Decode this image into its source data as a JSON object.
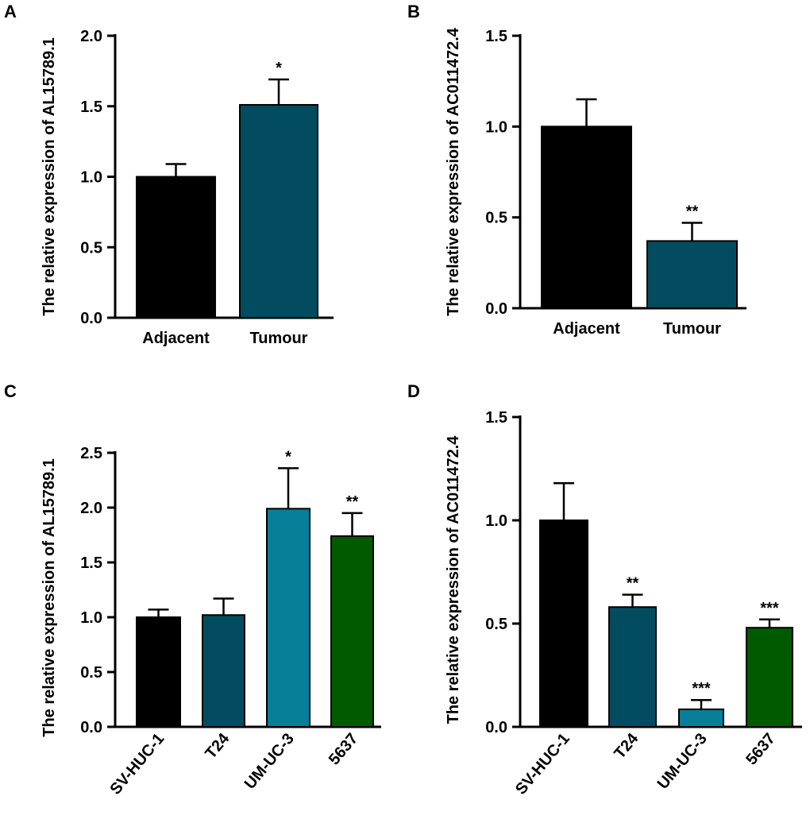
{
  "chart_data": [
    {
      "type": "bar",
      "panel_label": "A",
      "ylabel": "The relative expression of AL15789.1",
      "ylim": [
        0,
        2.0
      ],
      "yticks": [
        "0.0",
        "0.5",
        "1.0",
        "1.5",
        "2.0"
      ],
      "categories": [
        "Adjacent",
        "Tumour"
      ],
      "values": [
        1.0,
        1.51
      ],
      "error_upper": [
        1.09,
        1.69
      ],
      "significance": [
        "",
        "*"
      ],
      "colors": [
        "#000000",
        "#034c60"
      ],
      "rotated_labels": false
    },
    {
      "type": "bar",
      "panel_label": "B",
      "ylabel": "The relative expression of AC011472.4",
      "ylim": [
        0,
        1.5
      ],
      "yticks": [
        "0.0",
        "0.5",
        "1.0",
        "1.5"
      ],
      "categories": [
        "Adjacent",
        "Tumour"
      ],
      "values": [
        1.0,
        0.37
      ],
      "error_upper": [
        1.15,
        0.47
      ],
      "significance": [
        "",
        "**"
      ],
      "colors": [
        "#000000",
        "#034c60"
      ],
      "rotated_labels": false
    },
    {
      "type": "bar",
      "panel_label": "C",
      "ylabel": "The relative expression of AL15789.1",
      "ylim": [
        0,
        2.5
      ],
      "yticks": [
        "0.0",
        "0.5",
        "1.0",
        "1.5",
        "2.0",
        "2.5"
      ],
      "categories": [
        "SV-HUC-1",
        "T24",
        "UM-UC-3",
        "5637"
      ],
      "values": [
        1.0,
        1.02,
        1.99,
        1.74
      ],
      "error_upper": [
        1.07,
        1.17,
        2.36,
        1.95
      ],
      "significance": [
        "",
        "",
        "*",
        "**"
      ],
      "colors": [
        "#000000",
        "#034c60",
        "#077f99",
        "#005a00"
      ],
      "rotated_labels": true
    },
    {
      "type": "bar",
      "panel_label": "D",
      "ylabel": "The relative expression of AC011472.4",
      "ylim": [
        0,
        1.5
      ],
      "yticks": [
        "0.0",
        "0.5",
        "1.0",
        "1.5"
      ],
      "categories": [
        "SV-HUC-1",
        "T24",
        "UM-UC-3",
        "5637"
      ],
      "values": [
        1.0,
        0.58,
        0.085,
        0.48
      ],
      "error_upper": [
        1.18,
        0.64,
        0.13,
        0.52
      ],
      "significance": [
        "",
        "**",
        "***",
        "***"
      ],
      "colors": [
        "#000000",
        "#034c60",
        "#077f99",
        "#005a00"
      ],
      "rotated_labels": true
    }
  ]
}
